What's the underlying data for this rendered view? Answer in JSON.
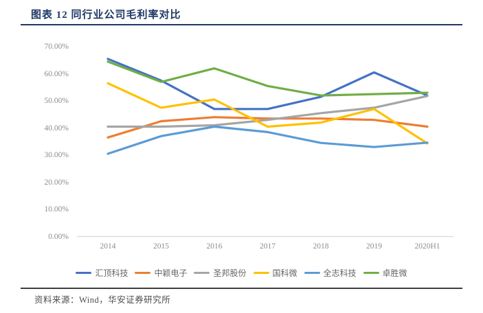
{
  "header": {
    "title": "图表 12 同行业公司毛利率对比"
  },
  "footer": {
    "source": "资料来源：Wind，华安证券研究所"
  },
  "colors": {
    "title_navy": "#1F3864",
    "axis_line": "#D9D9D9",
    "tick_text": "#8C8C8C",
    "legend_text": "#666666",
    "footer_rule": "#3d3d3d"
  },
  "chart_data": {
    "type": "line",
    "title": "同行业公司毛利率对比",
    "categories": [
      "2014",
      "2015",
      "2016",
      "2017",
      "2018",
      "2019",
      "2020H1"
    ],
    "series": [
      {
        "name": "汇顶科技",
        "color": "#4472C4",
        "values": [
          65.5,
          57.5,
          47.0,
          47.0,
          51.5,
          60.5,
          52.0
        ]
      },
      {
        "name": "中颖电子",
        "color": "#ED7D31",
        "values": [
          36.5,
          42.5,
          44.0,
          43.5,
          43.5,
          43.0,
          40.5
        ]
      },
      {
        "name": "圣邦股份",
        "color": "#A5A5A5",
        "values": [
          40.5,
          40.5,
          41.0,
          43.0,
          45.5,
          47.5,
          51.8
        ]
      },
      {
        "name": "国科微",
        "color": "#FFC000",
        "values": [
          56.5,
          47.5,
          50.5,
          40.5,
          42.0,
          47.0,
          34.3
        ]
      },
      {
        "name": "全志科技",
        "color": "#5B9BD5",
        "values": [
          30.5,
          37.0,
          40.5,
          38.5,
          34.5,
          33.0,
          34.6
        ]
      },
      {
        "name": "卓胜微",
        "color": "#70AD47",
        "values": [
          64.5,
          57.0,
          62.0,
          55.5,
          52.0,
          52.5,
          53.0
        ]
      }
    ],
    "y_ticks": [
      "0.00%",
      "10.00%",
      "20.00%",
      "30.00%",
      "40.00%",
      "50.00%",
      "60.00%",
      "70.00%"
    ],
    "ylim": [
      0,
      70
    ],
    "y_unit": "%",
    "grid": false,
    "legend_position": "bottom"
  }
}
